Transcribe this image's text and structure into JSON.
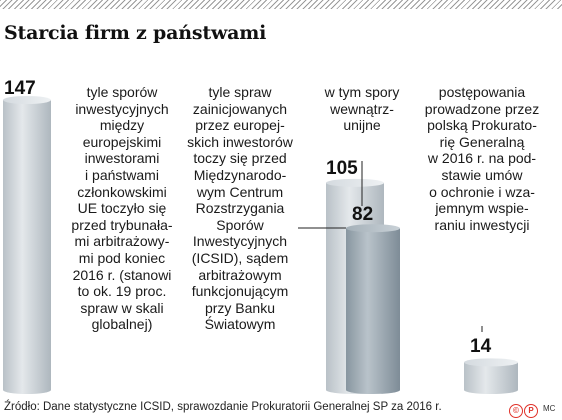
{
  "title": "Starcia firm z państwami",
  "chart_data": {
    "type": "bar",
    "title": "Starcia firm z państwami",
    "values": [
      147,
      105,
      82,
      14
    ],
    "labels": [
      "147",
      "105",
      "82",
      "14"
    ],
    "grid": false,
    "legend": "none",
    "colors": [
      "#c8cfd4",
      "#c8cfd4",
      "#9aa7b0",
      "#c8cfd4"
    ],
    "descriptions": [
      [
        "tyle sporów",
        "inwestycyjnych",
        "między",
        "europejskimi",
        "inwestorami",
        "i państwami",
        "członkowskimi",
        "UE toczyło się",
        "przed trybunała-",
        "mi arbitrażowy-",
        "mi pod koniec",
        "2016 r. (stanowi",
        "to ok. 19 proc.",
        "spraw w skali",
        "globalnej)"
      ],
      [
        "tyle spraw",
        "zainicjowanych",
        "przez europej-",
        "skich inwestorów",
        "toczy się przed",
        "Międzynarodo-",
        "wym Centrum",
        "Rozstrzygania",
        "Sporów",
        "Inwestycyjnych",
        "(ICSID), sądem",
        "arbitrażowym",
        "funkcjonującym",
        "przy Banku",
        "Światowym"
      ],
      [
        "w tym spory",
        "wewnątrz-",
        "unijne"
      ],
      [
        "postępowania",
        "prowadzone przez",
        "polską Prokurato-",
        "rię Generalną",
        "w 2016 r. na pod-",
        "stawie umów",
        "o ochronie i wza-",
        "jemnym wspie-",
        "raniu inwestycji"
      ]
    ]
  },
  "source": "Źródło: Dane statystyczne ICSID, sprawozdanie Prokuratorii Generalnej SP za 2016 r.",
  "logos": [
    "©",
    "P"
  ],
  "credit": "MC"
}
